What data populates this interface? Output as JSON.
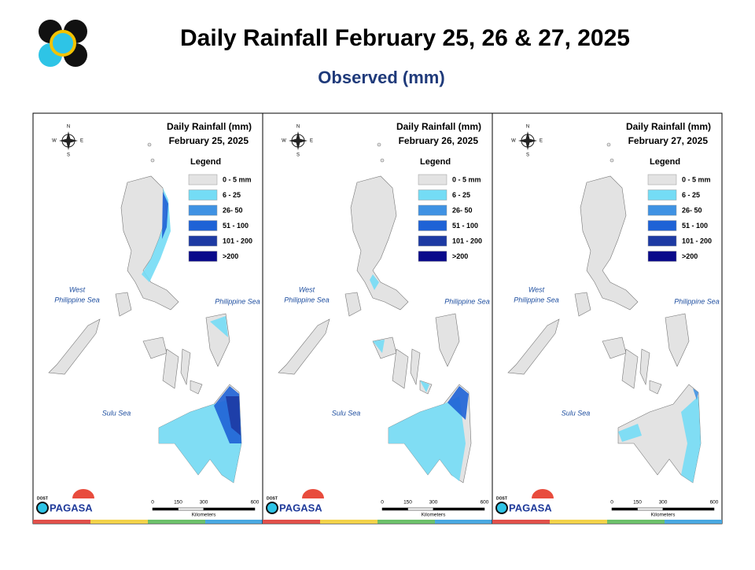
{
  "title": "Daily Rainfall February 25, 26 & 27, 2025",
  "subtitle": "Observed (mm)",
  "panels": [
    {
      "heading": "Daily Rainfall (mm)",
      "date": "February 25, 2025"
    },
    {
      "heading": "Daily Rainfall (mm)",
      "date": "February 26, 2025"
    },
    {
      "heading": "Daily Rainfall (mm)",
      "date": "February 27, 2025"
    }
  ],
  "legend": {
    "title": "Legend",
    "items": [
      {
        "label": "0 - 5 mm",
        "color": "#e3e3e3"
      },
      {
        "label": "6 - 25",
        "color": "#74dcf5"
      },
      {
        "label": "26- 50",
        "color": "#3f92e3"
      },
      {
        "label": "51 - 100",
        "color": "#1e62d6"
      },
      {
        "label": "101 - 200",
        "color": "#1d3aa3"
      },
      {
        "label": ">200",
        "color": "#0a0a8a"
      }
    ]
  },
  "compass": {
    "n": "N",
    "s": "S",
    "w": "W",
    "e": "E"
  },
  "seas": {
    "west_1": "West",
    "west_2": "Philippine Sea",
    "east": "Philippine Sea",
    "south": "Sulu Sea"
  },
  "scale": {
    "ticks": [
      0,
      150,
      300,
      600
    ],
    "unit": "Kilometers"
  },
  "logo": {
    "agency": "DOST",
    "name": "PAGASA"
  }
}
